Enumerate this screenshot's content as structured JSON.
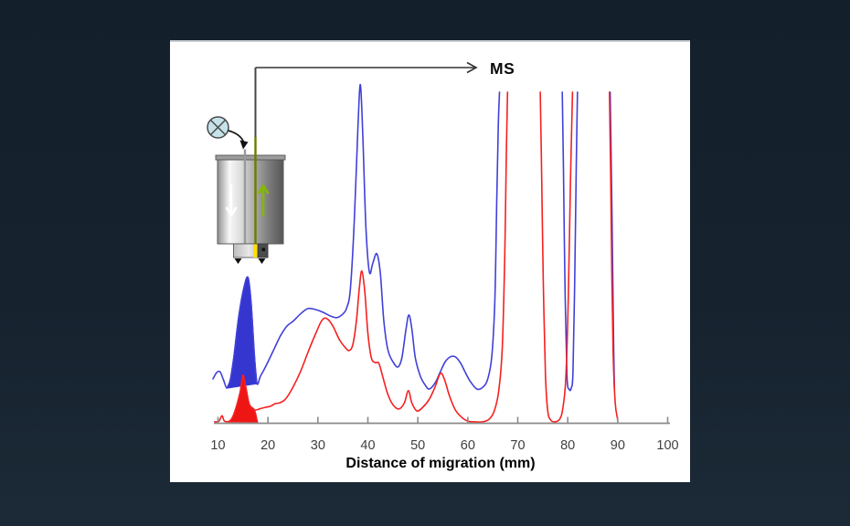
{
  "background_color": "#16222e",
  "panel_color": "#ffffff",
  "diagram": {
    "ms_label": "MS",
    "icons": [
      {
        "name": "lamp-icon",
        "shape": "circle-with-x",
        "fill": "#c6e3e9",
        "stroke": "#4a4a4a"
      },
      {
        "name": "white-down-arrow-icon",
        "color": "#ffffff",
        "direction": "down"
      },
      {
        "name": "green-up-arrow-icon",
        "color": "#85b802",
        "direction": "up"
      },
      {
        "name": "column-device-icon",
        "body_colors": [
          "#8f8f8f",
          "#f8f8f8",
          "#565656"
        ]
      },
      {
        "name": "capillary-line",
        "colors": [
          "#444444",
          "#6e7a00"
        ]
      },
      {
        "name": "ms-arrow",
        "color": "#333333",
        "head": "open-chevron"
      }
    ]
  },
  "chart_data": {
    "type": "line",
    "title": "",
    "xlabel": "Distance of migration (mm)",
    "ylabel": "",
    "xlim": [
      10,
      100
    ],
    "ylim": [
      0,
      100
    ],
    "grid": false,
    "legend": "none",
    "x_ticks": [
      10,
      20,
      30,
      40,
      50,
      60,
      70,
      80,
      90,
      100
    ],
    "offscale_clip_level": 97.8,
    "axis_color": "#8a8a8a",
    "series": [
      {
        "name": "blue-trace",
        "color": "#4040d9",
        "segments": [
          [
            [
              9.0,
              13
            ],
            [
              9.7,
              14.8
            ],
            [
              10.4,
              15.1
            ],
            [
              11.1,
              12.7
            ],
            [
              11.8,
              10.3
            ],
            [
              12.5,
              13
            ],
            [
              13.2,
              19.7
            ],
            [
              14.2,
              31.9
            ],
            [
              15.2,
              40
            ],
            [
              16.0,
              43
            ],
            [
              16.6,
              35.9
            ],
            [
              17.3,
              19.7
            ],
            [
              17.8,
              11.6
            ],
            [
              18.5,
              13.8
            ],
            [
              19.5,
              16.5
            ],
            [
              21.0,
              21.1
            ],
            [
              22.5,
              25.7
            ],
            [
              23.8,
              28.6
            ],
            [
              25.0,
              30
            ],
            [
              26.5,
              32.2
            ],
            [
              28.0,
              33.8
            ],
            [
              29.5,
              33.5
            ],
            [
              31.0,
              32.7
            ],
            [
              32.5,
              31.6
            ],
            [
              33.8,
              31.1
            ],
            [
              35.0,
              32.2
            ],
            [
              35.8,
              34.1
            ],
            [
              36.5,
              39.7
            ],
            [
              37.3,
              60.3
            ],
            [
              38.0,
              87.3
            ],
            [
              38.5,
              100
            ],
            [
              39.0,
              84.6
            ],
            [
              39.6,
              58.1
            ],
            [
              40.3,
              44.6
            ],
            [
              41.0,
              47.3
            ],
            [
              41.8,
              50
            ],
            [
              42.5,
              44.1
            ],
            [
              43.2,
              30
            ],
            [
              44.0,
              21.6
            ],
            [
              45.0,
              18.1
            ],
            [
              46.0,
              16.5
            ],
            [
              46.8,
              19.2
            ],
            [
              47.6,
              27.3
            ],
            [
              48.2,
              31.9
            ],
            [
              48.8,
              27.8
            ],
            [
              49.5,
              19.2
            ],
            [
              50.5,
              13.8
            ],
            [
              51.5,
              11.1
            ],
            [
              52.3,
              10
            ],
            [
              53.5,
              11.9
            ],
            [
              54.5,
              15.1
            ],
            [
              55.5,
              18.1
            ],
            [
              56.5,
              19.5
            ],
            [
              57.5,
              19.5
            ],
            [
              58.5,
              17.8
            ],
            [
              59.5,
              14.9
            ],
            [
              60.5,
              12.2
            ],
            [
              61.8,
              10
            ],
            [
              63.0,
              10.5
            ],
            [
              64.0,
              13
            ],
            [
              64.8,
              19.7
            ],
            [
              65.4,
              35.9
            ],
            [
              65.8,
              65.7
            ],
            [
              66.1,
              88
            ],
            [
              66.35,
              97.8
            ]
          ],
          [
            [
              78.9,
              97.8
            ],
            [
              79.15,
              75
            ],
            [
              79.45,
              40
            ],
            [
              79.85,
              14
            ],
            [
              80.3,
              9.9
            ],
            [
              80.7,
              10.3
            ],
            [
              81.05,
              15
            ],
            [
              81.4,
              42
            ],
            [
              81.7,
              76
            ],
            [
              81.95,
              97.8
            ]
          ],
          [
            [
              88.5,
              97.8
            ],
            [
              88.75,
              73
            ],
            [
              89.0,
              44
            ],
            [
              89.2,
              21
            ],
            [
              89.35,
              9.7
            ]
          ]
        ]
      },
      {
        "name": "red-trace",
        "color": "#f52020",
        "segments": [
          [
            [
              9.3,
              0.3
            ],
            [
              10.2,
              0.5
            ],
            [
              10.8,
              2.1
            ],
            [
              11.3,
              0.5
            ],
            [
              12.3,
              0.5
            ],
            [
              13.0,
              1.9
            ],
            [
              13.8,
              5.4
            ],
            [
              14.5,
              9.5
            ],
            [
              15.0,
              14.1
            ],
            [
              15.6,
              10.3
            ],
            [
              16.3,
              5.4
            ],
            [
              17.3,
              3.8
            ],
            [
              18.3,
              4.1
            ],
            [
              19.5,
              4.6
            ],
            [
              20.5,
              4.9
            ],
            [
              21.5,
              5.7
            ],
            [
              22.3,
              5.9
            ],
            [
              23.5,
              7
            ],
            [
              25.0,
              10.5
            ],
            [
              26.5,
              15.1
            ],
            [
              28.0,
              20.8
            ],
            [
              29.5,
              26.2
            ],
            [
              30.8,
              30.3
            ],
            [
              31.8,
              30.8
            ],
            [
              33.0,
              28.6
            ],
            [
              34.3,
              24.6
            ],
            [
              35.5,
              22.2
            ],
            [
              36.3,
              21.4
            ],
            [
              37.0,
              23.2
            ],
            [
              37.7,
              30
            ],
            [
              38.3,
              40
            ],
            [
              38.8,
              44.9
            ],
            [
              39.4,
              38.6
            ],
            [
              40.0,
              26.5
            ],
            [
              40.7,
              19.2
            ],
            [
              41.5,
              17.8
            ],
            [
              42.2,
              17.6
            ],
            [
              43.0,
              13.5
            ],
            [
              44.0,
              8.4
            ],
            [
              45.0,
              5.4
            ],
            [
              46.2,
              4.1
            ],
            [
              47.3,
              5.9
            ],
            [
              48.1,
              9.5
            ],
            [
              48.8,
              5.9
            ],
            [
              49.8,
              3.5
            ],
            [
              51.0,
              4.6
            ],
            [
              52.3,
              7
            ],
            [
              53.5,
              10.8
            ],
            [
              54.5,
              14.6
            ],
            [
              55.3,
              13
            ],
            [
              56.3,
              8.1
            ],
            [
              57.5,
              3.8
            ],
            [
              58.8,
              1.6
            ],
            [
              60.0,
              0.5
            ],
            [
              61.5,
              0.3
            ],
            [
              63.0,
              0.3
            ],
            [
              64.3,
              1.1
            ],
            [
              65.3,
              3.5
            ],
            [
              66.2,
              9.5
            ],
            [
              66.9,
              22.4
            ],
            [
              67.4,
              50
            ],
            [
              67.7,
              78
            ],
            [
              67.95,
              97.8
            ]
          ],
          [
            [
              74.5,
              97.8
            ],
            [
              74.8,
              72
            ],
            [
              75.1,
              42
            ],
            [
              75.55,
              14
            ],
            [
              76.0,
              3.5
            ],
            [
              76.6,
              0.8
            ],
            [
              77.5,
              0.3
            ],
            [
              78.4,
              1.1
            ],
            [
              79.0,
              4.1
            ],
            [
              79.6,
              13
            ],
            [
              80.1,
              36
            ],
            [
              80.55,
              72
            ],
            [
              80.95,
              97.8
            ]
          ],
          [
            [
              88.35,
              97.8
            ],
            [
              88.6,
              72
            ],
            [
              88.85,
              42
            ],
            [
              89.1,
              20
            ],
            [
              89.5,
              6
            ],
            [
              90.0,
              0.8
            ]
          ]
        ]
      }
    ],
    "filled_peaks": [
      {
        "name": "blue-filled-peak",
        "series": "blue-trace",
        "fill": "#3535cf",
        "stroke": "#3b3bd6",
        "points": [
          [
            11.8,
            10.3
          ],
          [
            12.5,
            13
          ],
          [
            13.2,
            19.7
          ],
          [
            14.2,
            31.9
          ],
          [
            15.2,
            40
          ],
          [
            16.0,
            43
          ],
          [
            16.6,
            35.9
          ],
          [
            17.3,
            19.7
          ],
          [
            17.8,
            11.6
          ]
        ]
      },
      {
        "name": "red-filled-peak",
        "series": "red-trace",
        "fill": "#ee1515",
        "stroke": "#f22020",
        "points": [
          [
            12.3,
            0.3
          ],
          [
            13.0,
            1.9
          ],
          [
            13.8,
            5.4
          ],
          [
            14.5,
            9.5
          ],
          [
            15.0,
            14.1
          ],
          [
            15.6,
            10.3
          ],
          [
            16.3,
            5.4
          ],
          [
            17.3,
            3.8
          ],
          [
            17.9,
            0.2
          ]
        ]
      }
    ],
    "annotations": [
      {
        "text": "MS",
        "meaning": "outlet arrow to mass spectrometer"
      }
    ]
  }
}
